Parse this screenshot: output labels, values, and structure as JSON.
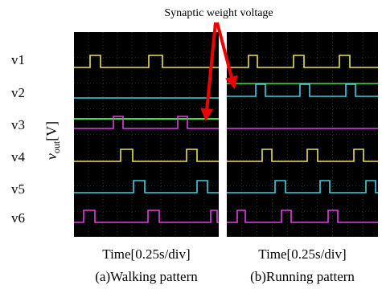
{
  "annotation": "Synaptic weight voltage",
  "rows": [
    "v1",
    "v2",
    "v3",
    "v4",
    "v5",
    "v6"
  ],
  "y_label": {
    "main": "v",
    "sub": "out",
    "unit": "[V]"
  },
  "panels": [
    {
      "x_label": "Time[0.25s/div]",
      "caption": "(a)Walking pattern"
    },
    {
      "x_label": "Time[0.25s/div]",
      "caption": "(b)Running pattern"
    }
  ]
}
